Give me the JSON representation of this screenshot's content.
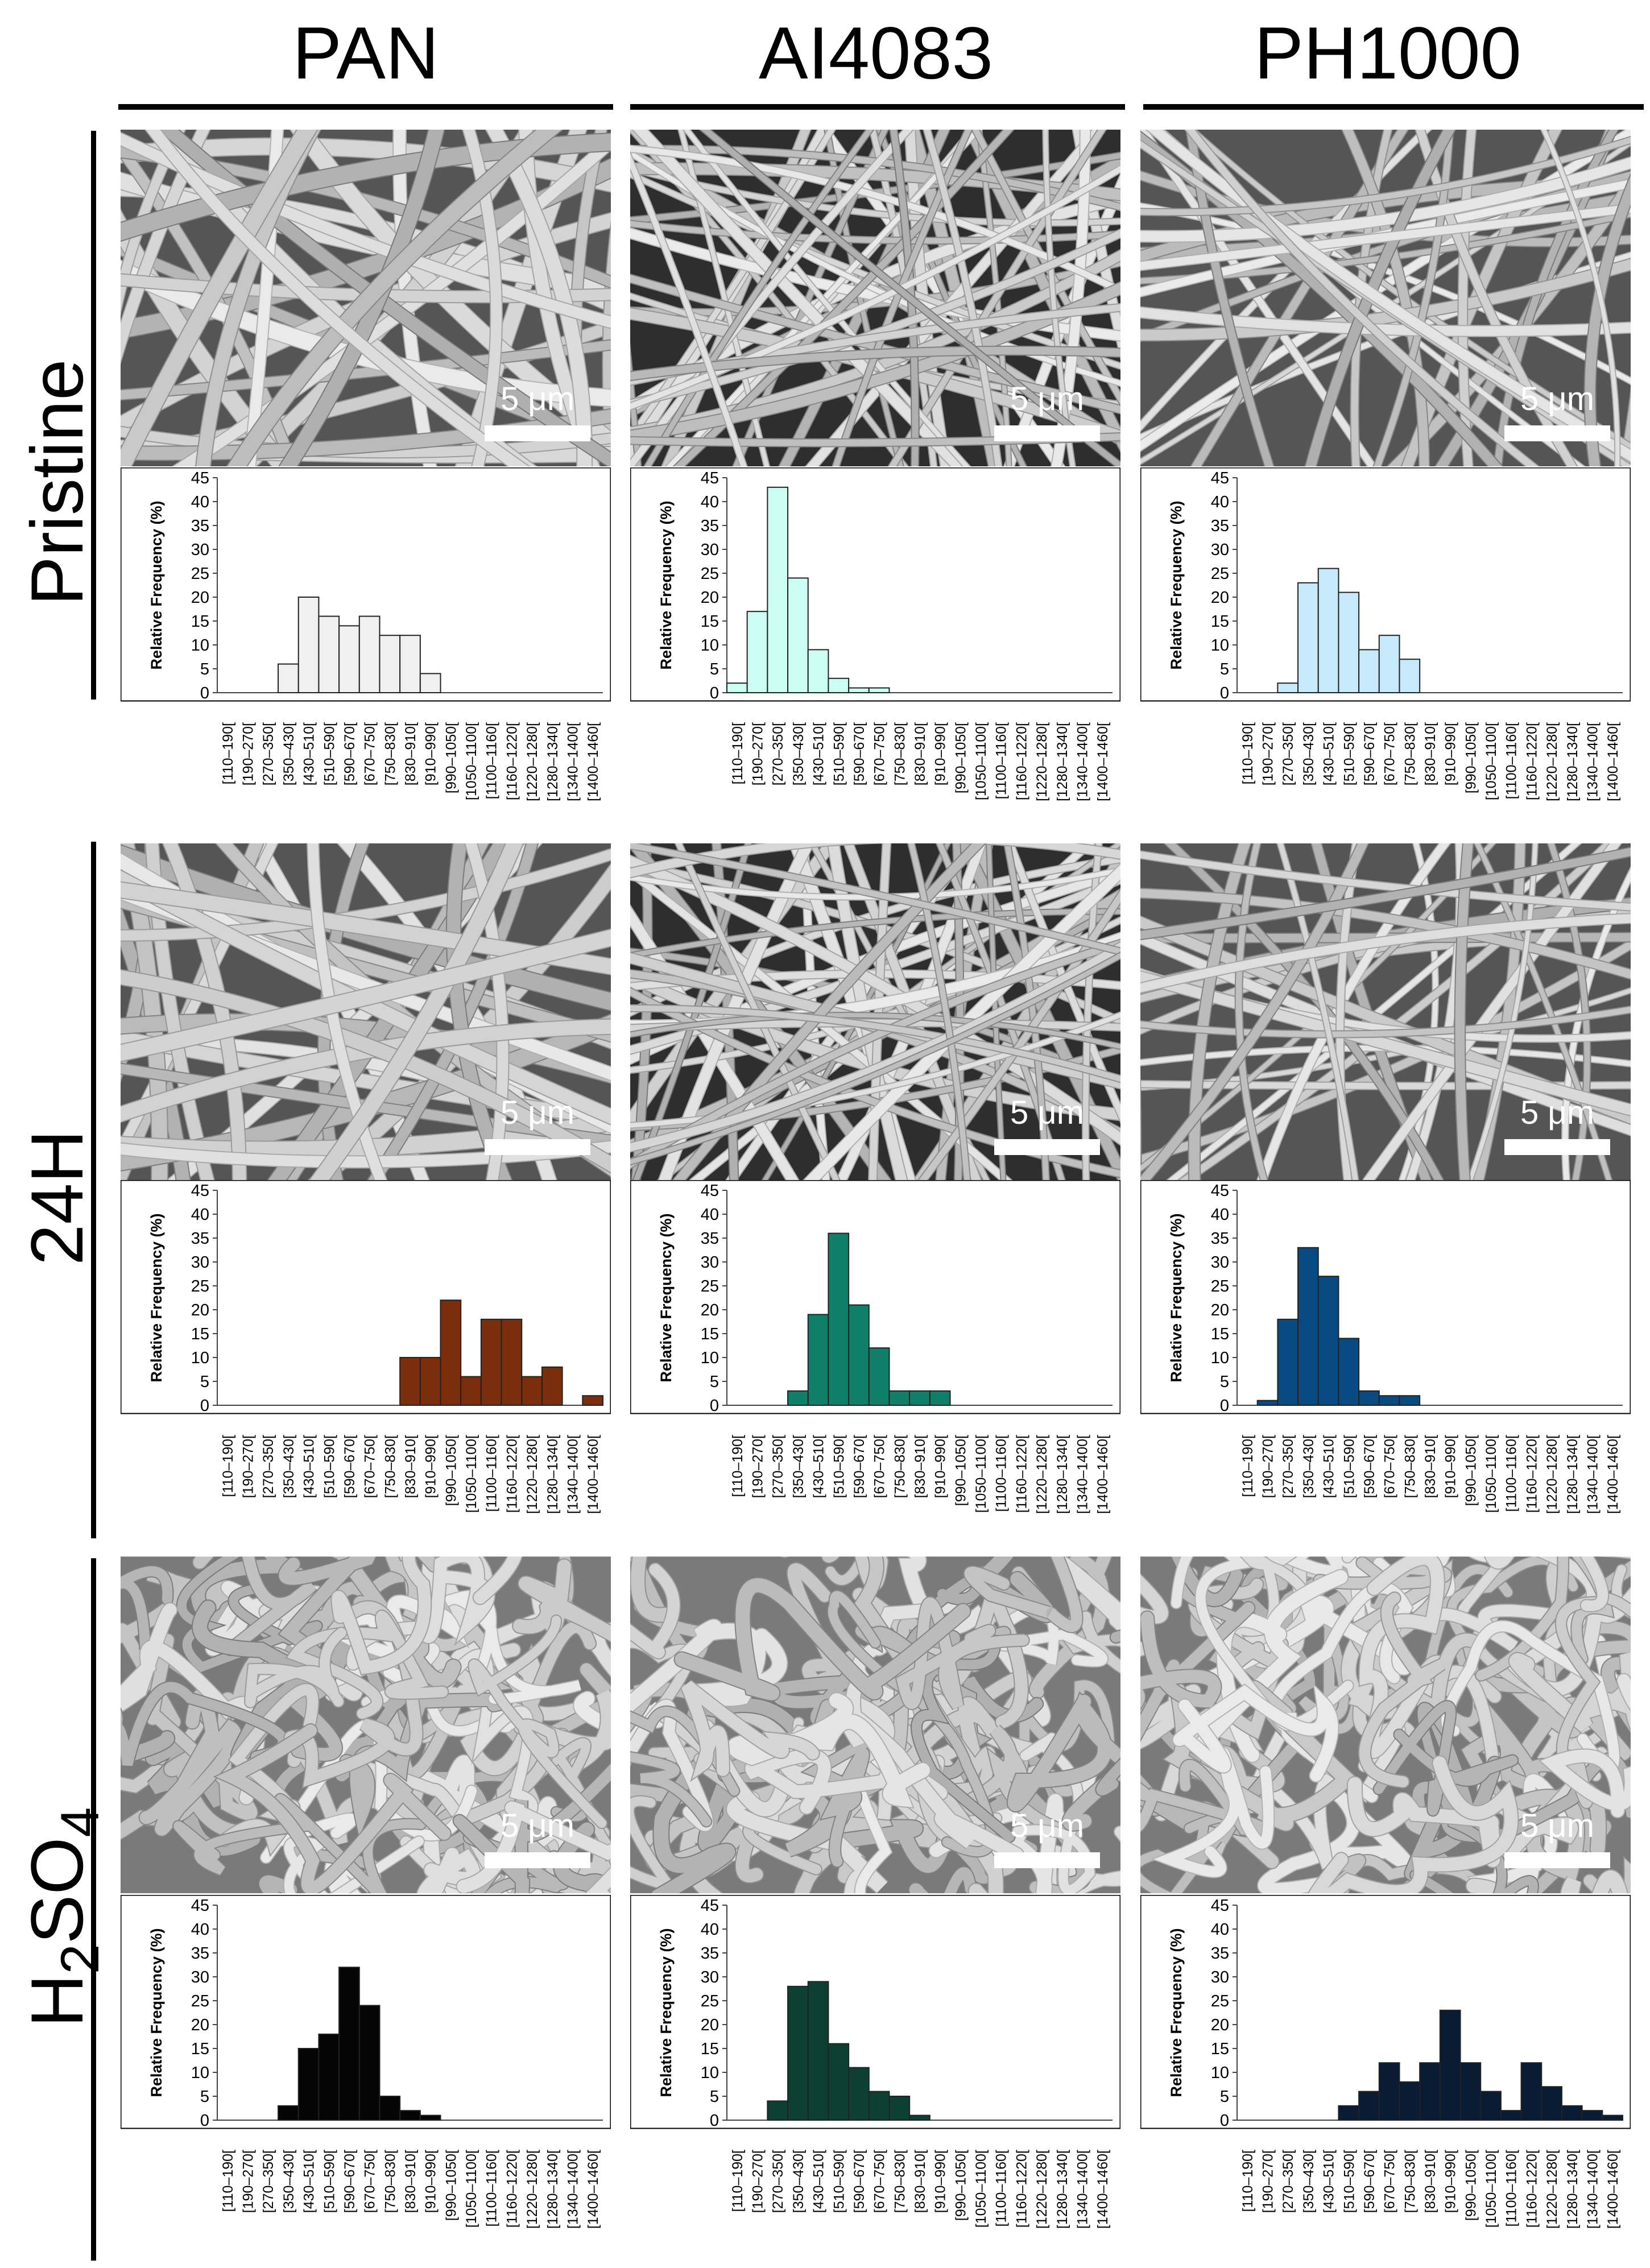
{
  "columns": [
    "PAN",
    "AI4083",
    "PH1000"
  ],
  "rows": [
    {
      "label": "Pristine"
    },
    {
      "label": "24H"
    },
    {
      "label_main": "H",
      "label_sub1": "2",
      "label_mid": "SO",
      "label_sub2": "4"
    }
  ],
  "scale_bar_label": "5 μm",
  "chart_data": {
    "type": "bar",
    "ylabel": "Relative Frequency (%)",
    "ylim": [
      0,
      45
    ],
    "yticks": [
      0,
      5,
      10,
      15,
      20,
      25,
      30,
      35,
      40,
      45
    ],
    "categories": [
      "[110–190[",
      "[190–270[",
      "[270–350[",
      "[350–430[",
      "[430–510[",
      "[510–590[",
      "[590–670[",
      "[670–750[",
      "[750–830[",
      "[830–910[",
      "[910–990[",
      "[990–1050[",
      "[1050–1100[",
      "[1100–1160[",
      "[1160–1220[",
      "[1220–1280[",
      "[1280–1340[",
      "[1340–1400[",
      "[1400–1460["
    ],
    "panels": [
      {
        "row": "Pristine",
        "column": "PAN",
        "color": "#f0f0f0",
        "values": [
          0,
          0,
          0,
          6,
          20,
          16,
          14,
          16,
          12,
          12,
          4,
          0,
          0,
          0,
          0,
          0,
          0,
          0,
          0
        ]
      },
      {
        "row": "Pristine",
        "column": "AI4083",
        "color": "#ccfdf4",
        "values": [
          2,
          17,
          43,
          24,
          9,
          3,
          1,
          1,
          0,
          0,
          0,
          0,
          0,
          0,
          0,
          0,
          0,
          0,
          0
        ]
      },
      {
        "row": "Pristine",
        "column": "PH1000",
        "color": "#c6e9fb",
        "values": [
          0,
          0,
          2,
          23,
          26,
          21,
          9,
          12,
          7,
          0,
          0,
          0,
          0,
          0,
          0,
          0,
          0,
          0,
          0
        ]
      },
      {
        "row": "24H",
        "column": "PAN",
        "color": "#7a2e0b",
        "values": [
          0,
          0,
          0,
          0,
          0,
          0,
          0,
          0,
          0,
          10,
          10,
          22,
          6,
          18,
          18,
          6,
          8,
          0,
          2
        ]
      },
      {
        "row": "24H",
        "column": "AI4083",
        "color": "#0f7f6a",
        "values": [
          0,
          0,
          0,
          3,
          19,
          36,
          21,
          12,
          3,
          3,
          3,
          0,
          0,
          0,
          0,
          0,
          0,
          0,
          0
        ]
      },
      {
        "row": "24H",
        "column": "PH1000",
        "color": "#084b82",
        "values": [
          0,
          1,
          18,
          33,
          27,
          14,
          3,
          2,
          2,
          0,
          0,
          0,
          0,
          0,
          0,
          0,
          0,
          0,
          0
        ]
      },
      {
        "row": "H2SO4",
        "column": "PAN",
        "color": "#050505",
        "values": [
          0,
          0,
          0,
          3,
          15,
          18,
          32,
          24,
          5,
          2,
          1,
          0,
          0,
          0,
          0,
          0,
          0,
          0,
          0
        ]
      },
      {
        "row": "H2SO4",
        "column": "AI4083",
        "color": "#0b4032",
        "values": [
          0,
          0,
          4,
          28,
          29,
          16,
          11,
          6,
          5,
          1,
          0,
          0,
          0,
          0,
          0,
          0,
          0,
          0,
          0
        ]
      },
      {
        "row": "H2SO4",
        "column": "PH1000",
        "color": "#0a1c33",
        "values": [
          0,
          0,
          0,
          0,
          0,
          3,
          6,
          12,
          8,
          12,
          23,
          12,
          6,
          2,
          12,
          7,
          3,
          2,
          1
        ]
      }
    ]
  }
}
